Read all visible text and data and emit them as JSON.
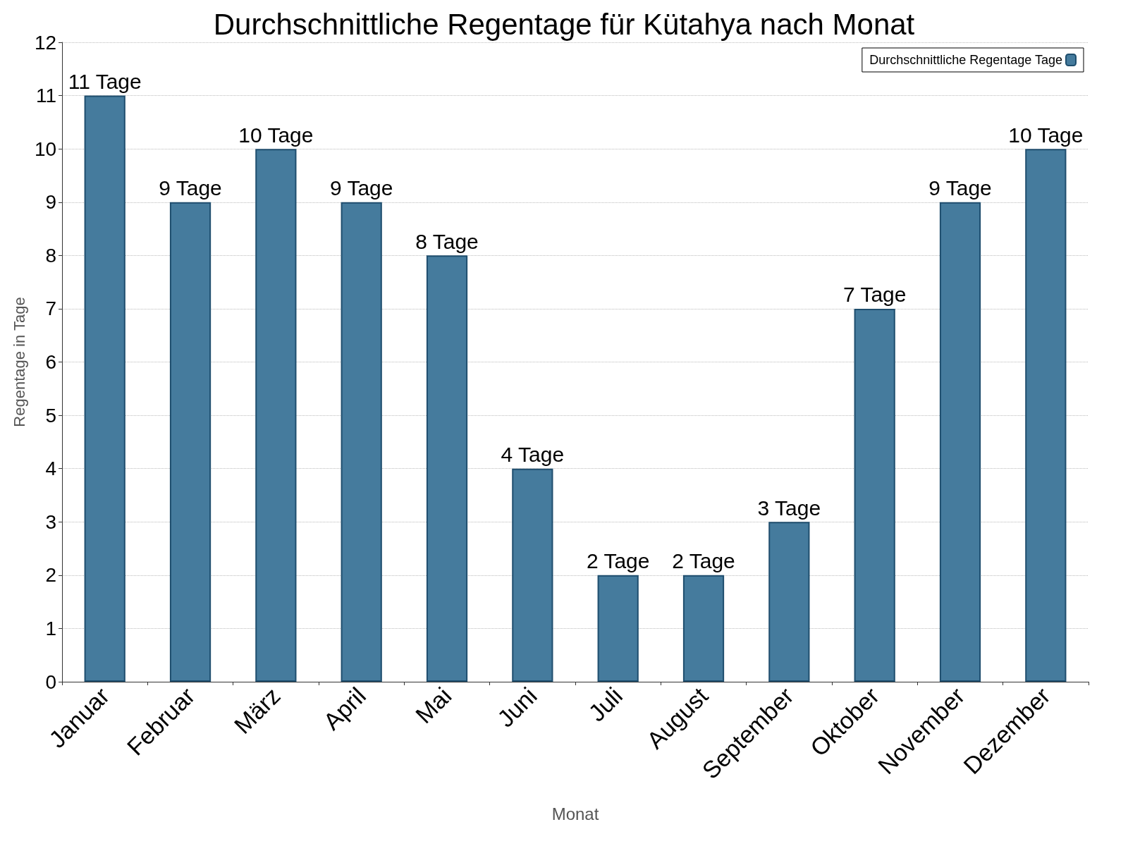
{
  "chart_data": {
    "type": "bar",
    "title": "Durchschnittliche Regentage für Kütahya nach Monat",
    "xlabel": "Monat",
    "ylabel": "Regentage in Tage",
    "categories": [
      "Januar",
      "Februar",
      "März",
      "April",
      "Mai",
      "Juni",
      "Juli",
      "August",
      "September",
      "Oktober",
      "November",
      "Dezember"
    ],
    "series": [
      {
        "name": "Durchschnittliche Regentage Tage",
        "color": "#457b9d",
        "values": [
          11,
          9,
          10,
          9,
          8,
          4,
          2,
          2,
          3,
          7,
          9,
          10
        ],
        "value_labels": [
          "11 Tage",
          "9 Tage",
          "10 Tage",
          "9 Tage",
          "8 Tage",
          "4 Tage",
          "2 Tage",
          "2 Tage",
          "3 Tage",
          "7 Tage",
          "9 Tage",
          "10 Tage"
        ]
      }
    ],
    "ylim": [
      0,
      12
    ],
    "yticks": [
      0,
      1,
      2,
      3,
      4,
      5,
      6,
      7,
      8,
      9,
      10,
      11,
      12
    ],
    "grid": "y",
    "legend": "top right"
  }
}
